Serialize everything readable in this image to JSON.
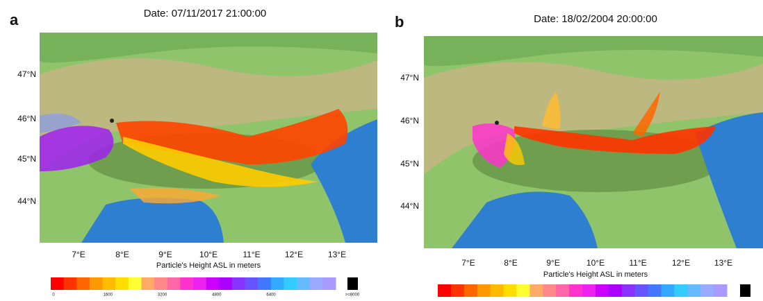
{
  "panels": [
    {
      "label": "a",
      "title": "Date: 07/11/2017 21:00:00",
      "lat_ticks": [
        "47°N",
        "46°N",
        "45°N",
        "44°N"
      ],
      "lon_ticks": [
        "7°E",
        "8°E",
        "9°E",
        "10°E",
        "11°E",
        "12°E",
        "13°E"
      ],
      "xlabel": "Particle's Height ASL in meters",
      "colorbar_labels": [
        "0",
        "1600",
        "3200",
        "4800",
        "6400",
        ">=8000"
      ]
    },
    {
      "label": "b",
      "title": "Date: 18/02/2004 20:00:00",
      "lat_ticks": [
        "47°N",
        "46°N",
        "45°N",
        "44°N"
      ],
      "lon_ticks": [
        "7°E",
        "8°E",
        "9°E",
        "10°E",
        "11°E",
        "12°E",
        "13°E"
      ],
      "xlabel": "Particle's Height ASL in meters",
      "colorbar_labels": []
    }
  ],
  "colorbar_colors": [
    "#ff0000",
    "#ff3300",
    "#ff6600",
    "#ff9900",
    "#ffbb00",
    "#ffdd00",
    "#ffff33",
    "#ffaa66",
    "#ff8888",
    "#ff66aa",
    "#ff33cc",
    "#ee22ee",
    "#cc00ff",
    "#aa00ff",
    "#8833ff",
    "#6655ff",
    "#4477ff",
    "#33aaff",
    "#33ccff",
    "#66bbff",
    "#99aaff",
    "#aa99ff"
  ],
  "overflow_color": "#000000"
}
